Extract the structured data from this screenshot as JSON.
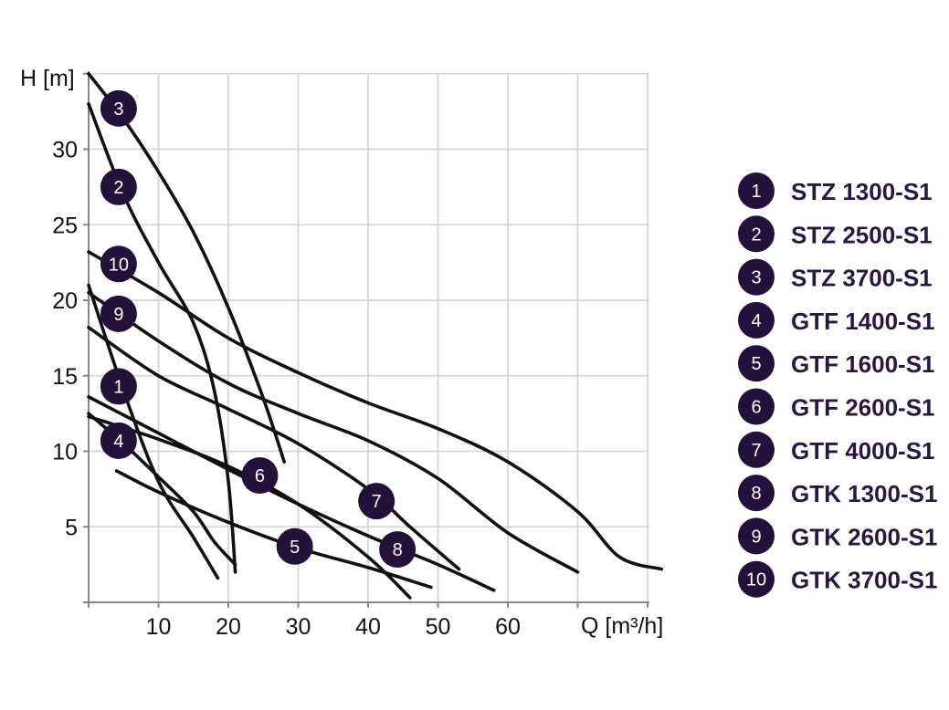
{
  "chart_data": {
    "type": "line",
    "xlabel": "Q [m³/h]",
    "ylabel": "H [m]",
    "xlim": [
      0,
      80
    ],
    "ylim": [
      0,
      35
    ],
    "x_ticks": [
      10,
      20,
      30,
      40,
      50,
      60
    ],
    "y_ticks": [
      5,
      10,
      15,
      20,
      25,
      30
    ],
    "grid": true,
    "legend_position": "right",
    "marker_color": "#24103a",
    "line_color": "#111111",
    "series": [
      {
        "id": "1",
        "name": "STZ 1300-S1",
        "label_at": [
          4.3,
          14.3
        ],
        "points": [
          [
            0,
            21
          ],
          [
            5,
            14
          ],
          [
            10,
            8
          ],
          [
            15,
            4.3
          ],
          [
            18.5,
            1.6
          ]
        ]
      },
      {
        "id": "2",
        "name": "STZ 2500-S1",
        "label_at": [
          4.3,
          27.5
        ],
        "points": [
          [
            0,
            33
          ],
          [
            5,
            27
          ],
          [
            10,
            22.5
          ],
          [
            15,
            18.5
          ],
          [
            18,
            14
          ],
          [
            20,
            8
          ],
          [
            21,
            2
          ]
        ]
      },
      {
        "id": "3",
        "name": "STZ 3700-S1",
        "label_at": [
          4.3,
          32.7
        ],
        "points": [
          [
            0,
            35
          ],
          [
            5,
            32
          ],
          [
            10,
            28.5
          ],
          [
            15,
            24.5
          ],
          [
            20,
            19.5
          ],
          [
            25,
            13.5
          ],
          [
            28,
            9.3
          ]
        ]
      },
      {
        "id": "4",
        "name": "GTF 1400-S1",
        "label_at": [
          4.3,
          10.7
        ],
        "points": [
          [
            0,
            12.5
          ],
          [
            5,
            10.5
          ],
          [
            10,
            8.3
          ],
          [
            15,
            6
          ],
          [
            18,
            4
          ],
          [
            21,
            2.5
          ]
        ]
      },
      {
        "id": "5",
        "name": "GTF 1600-S1",
        "label_at": [
          29.5,
          3.7
        ],
        "points": [
          [
            4,
            8.7
          ],
          [
            10,
            7.3
          ],
          [
            20,
            5.3
          ],
          [
            30,
            3.6
          ],
          [
            40,
            2.3
          ],
          [
            49,
            1
          ]
        ]
      },
      {
        "id": "6",
        "name": "GTF 2600-S1",
        "label_at": [
          24.5,
          8.4
        ],
        "points": [
          [
            0,
            12.3
          ],
          [
            10,
            10.8
          ],
          [
            20,
            9
          ],
          [
            30,
            6.5
          ],
          [
            40,
            3
          ],
          [
            46,
            0.3
          ]
        ]
      },
      {
        "id": "7",
        "name": "GTF 4000-S1",
        "label_at": [
          41.2,
          6.7
        ],
        "points": [
          [
            0,
            18.2
          ],
          [
            10,
            15
          ],
          [
            20,
            12.8
          ],
          [
            30,
            10.5
          ],
          [
            40,
            7.5
          ],
          [
            46,
            5
          ],
          [
            53,
            2.2
          ]
        ]
      },
      {
        "id": "8",
        "name": "GTK 1300-S1",
        "label_at": [
          44.2,
          3.5
        ],
        "points": [
          [
            0,
            13.6
          ],
          [
            10,
            11.2
          ],
          [
            20,
            8.8
          ],
          [
            30,
            6.5
          ],
          [
            40,
            4.4
          ],
          [
            50,
            2.5
          ],
          [
            58,
            0.8
          ]
        ]
      },
      {
        "id": "9",
        "name": "GTK 2600-S1",
        "label_at": [
          4.3,
          19.1
        ],
        "points": [
          [
            0,
            20.5
          ],
          [
            10,
            17.3
          ],
          [
            20,
            14.5
          ],
          [
            30,
            12.5
          ],
          [
            40,
            10.7
          ],
          [
            50,
            8.2
          ],
          [
            60,
            4.6
          ],
          [
            70,
            2
          ]
        ]
      },
      {
        "id": "10",
        "name": "GTK 3700-S1",
        "label_at": [
          4.3,
          22.4
        ],
        "points": [
          [
            0,
            23.2
          ],
          [
            10,
            20.5
          ],
          [
            20,
            17.5
          ],
          [
            30,
            15.2
          ],
          [
            40,
            13.2
          ],
          [
            50,
            11.5
          ],
          [
            60,
            9.3
          ],
          [
            70,
            6
          ],
          [
            76,
            3
          ],
          [
            82,
            2.2
          ]
        ]
      }
    ]
  }
}
